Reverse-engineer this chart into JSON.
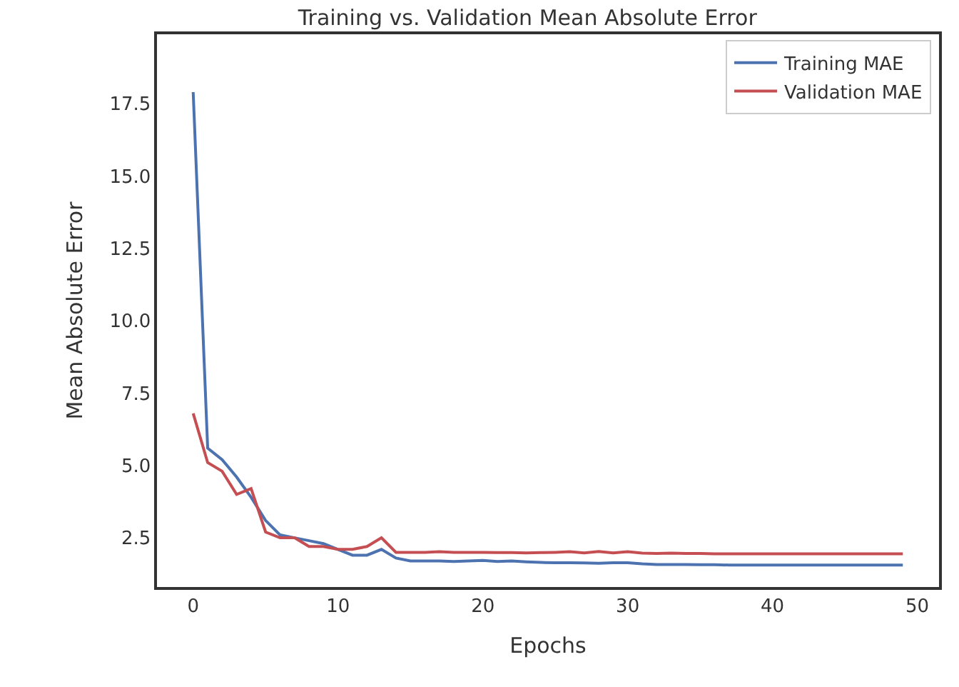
{
  "chart_data": {
    "type": "line",
    "title": "Training vs. Validation Mean Absolute Error",
    "xlabel": "Epochs",
    "ylabel": "Mean Absolute Error",
    "x": [
      0,
      1,
      2,
      3,
      4,
      5,
      6,
      7,
      8,
      9,
      10,
      11,
      12,
      13,
      14,
      15,
      16,
      17,
      18,
      19,
      20,
      21,
      22,
      23,
      24,
      25,
      26,
      27,
      28,
      29,
      30,
      31,
      32,
      33,
      34,
      35,
      36,
      37,
      38,
      39,
      40,
      41,
      42,
      43,
      44,
      45,
      46,
      47,
      48,
      49
    ],
    "series": [
      {
        "name": "Training MAE",
        "color": "#4c72b0",
        "values": [
          17.9,
          5.6,
          5.2,
          4.6,
          3.9,
          3.1,
          2.6,
          2.5,
          2.4,
          2.3,
          2.1,
          1.9,
          1.9,
          2.1,
          1.8,
          1.7,
          1.7,
          1.7,
          1.68,
          1.7,
          1.72,
          1.68,
          1.7,
          1.67,
          1.65,
          1.64,
          1.64,
          1.63,
          1.62,
          1.64,
          1.64,
          1.6,
          1.58,
          1.58,
          1.58,
          1.57,
          1.57,
          1.56,
          1.56,
          1.56,
          1.56,
          1.56,
          1.56,
          1.56,
          1.56,
          1.56,
          1.56,
          1.56,
          1.56,
          1.56
        ]
      },
      {
        "name": "Validation MAE",
        "color": "#c44e52",
        "values": [
          6.8,
          5.1,
          4.8,
          4.0,
          4.2,
          2.7,
          2.5,
          2.5,
          2.2,
          2.2,
          2.1,
          2.1,
          2.2,
          2.5,
          2.0,
          2.0,
          2.0,
          2.02,
          2.0,
          2.0,
          2.0,
          1.99,
          1.99,
          1.98,
          1.99,
          2.0,
          2.02,
          1.98,
          2.03,
          1.98,
          2.02,
          1.97,
          1.96,
          1.97,
          1.96,
          1.96,
          1.95,
          1.95,
          1.95,
          1.95,
          1.95,
          1.95,
          1.95,
          1.95,
          1.95,
          1.95,
          1.95,
          1.95,
          1.95,
          1.95
        ]
      }
    ],
    "xlim": [
      -2.5,
      51.5
    ],
    "ylim": [
      0.8,
      19.9
    ],
    "xticks": [
      0,
      10,
      20,
      30,
      40,
      50
    ],
    "yticks": [
      2.5,
      {
        "value": 5,
        "label": "5.0"
      },
      7.5,
      {
        "value": 10,
        "label": "10.0"
      },
      12.5,
      {
        "value": 15,
        "label": "15.0"
      },
      17.5
    ],
    "grid": false,
    "legend": "top right",
    "marker": "none",
    "line_style": "solid"
  }
}
